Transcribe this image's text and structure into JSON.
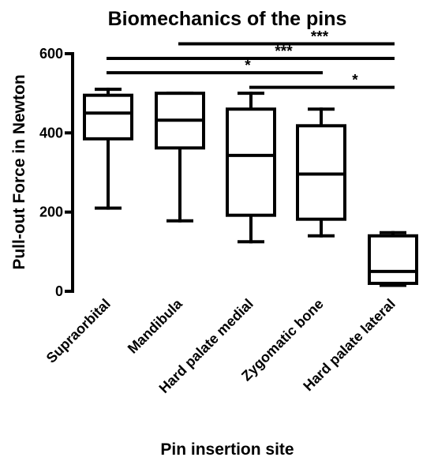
{
  "chart_data": {
    "type": "box",
    "title": "Biomechanics of the pins",
    "xlabel": "Pin insertion site",
    "ylabel": "Pull-out Force in Newton",
    "ylim": [
      0,
      600
    ],
    "yticks": [
      0,
      200,
      400,
      600
    ],
    "categories": [
      "Supraorbital",
      "Mandibula",
      "Hard palate medial",
      "Zygomatic bone",
      "Hard palate lateral"
    ],
    "boxes": [
      {
        "min": 210,
        "q1": 385,
        "median": 450,
        "q3": 495,
        "max": 510
      },
      {
        "min": 178,
        "q1": 362,
        "median": 432,
        "q3": 500,
        "max": 500
      },
      {
        "min": 125,
        "q1": 192,
        "median": 343,
        "q3": 460,
        "max": 500
      },
      {
        "min": 140,
        "q1": 182,
        "median": 296,
        "q3": 418,
        "max": 460
      },
      {
        "min": 15,
        "q1": 20,
        "median": 50,
        "q3": 140,
        "max": 148
      }
    ],
    "significance": [
      {
        "from": 1,
        "to": 4,
        "y": 625,
        "label": "***"
      },
      {
        "from": 0,
        "to": 4,
        "y": 588,
        "label": "***"
      },
      {
        "from": 0,
        "to": 3,
        "y": 552,
        "label": "*"
      },
      {
        "from": 2,
        "to": 4,
        "y": 515,
        "label": "*"
      }
    ]
  }
}
